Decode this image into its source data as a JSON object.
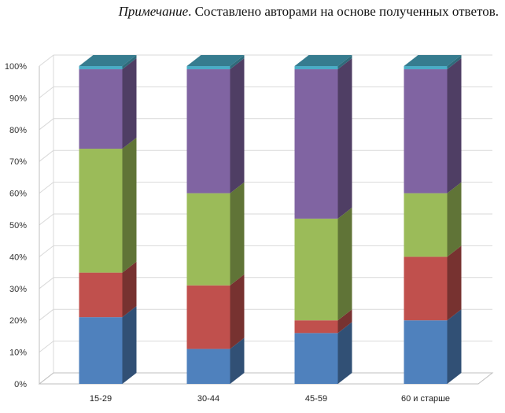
{
  "note": {
    "label": "Примечание",
    "text": ". Составлено авторами на основе полученных ответов."
  },
  "chart_data": {
    "type": "bar",
    "stacked": true,
    "three_d": true,
    "categories": [
      "15-29",
      "30-44",
      "45-59",
      "60 и старше"
    ],
    "series": [
      {
        "color": "#4F81BD",
        "values": [
          21,
          11,
          16,
          20
        ]
      },
      {
        "color": "#C0504D",
        "values": [
          14,
          20,
          4,
          20
        ]
      },
      {
        "color": "#9BBB59",
        "values": [
          39,
          29,
          32,
          20
        ]
      },
      {
        "color": "#8064A2",
        "values": [
          25,
          39,
          47,
          39
        ]
      },
      {
        "color": "#4BACC6",
        "values": [
          1,
          1,
          1,
          1
        ]
      }
    ],
    "yticks": [
      "0%",
      "10%",
      "20%",
      "30%",
      "40%",
      "50%",
      "60%",
      "70%",
      "80%",
      "90%",
      "100%"
    ],
    "ylim": [
      0,
      100
    ],
    "grid": true,
    "legend": "none"
  }
}
